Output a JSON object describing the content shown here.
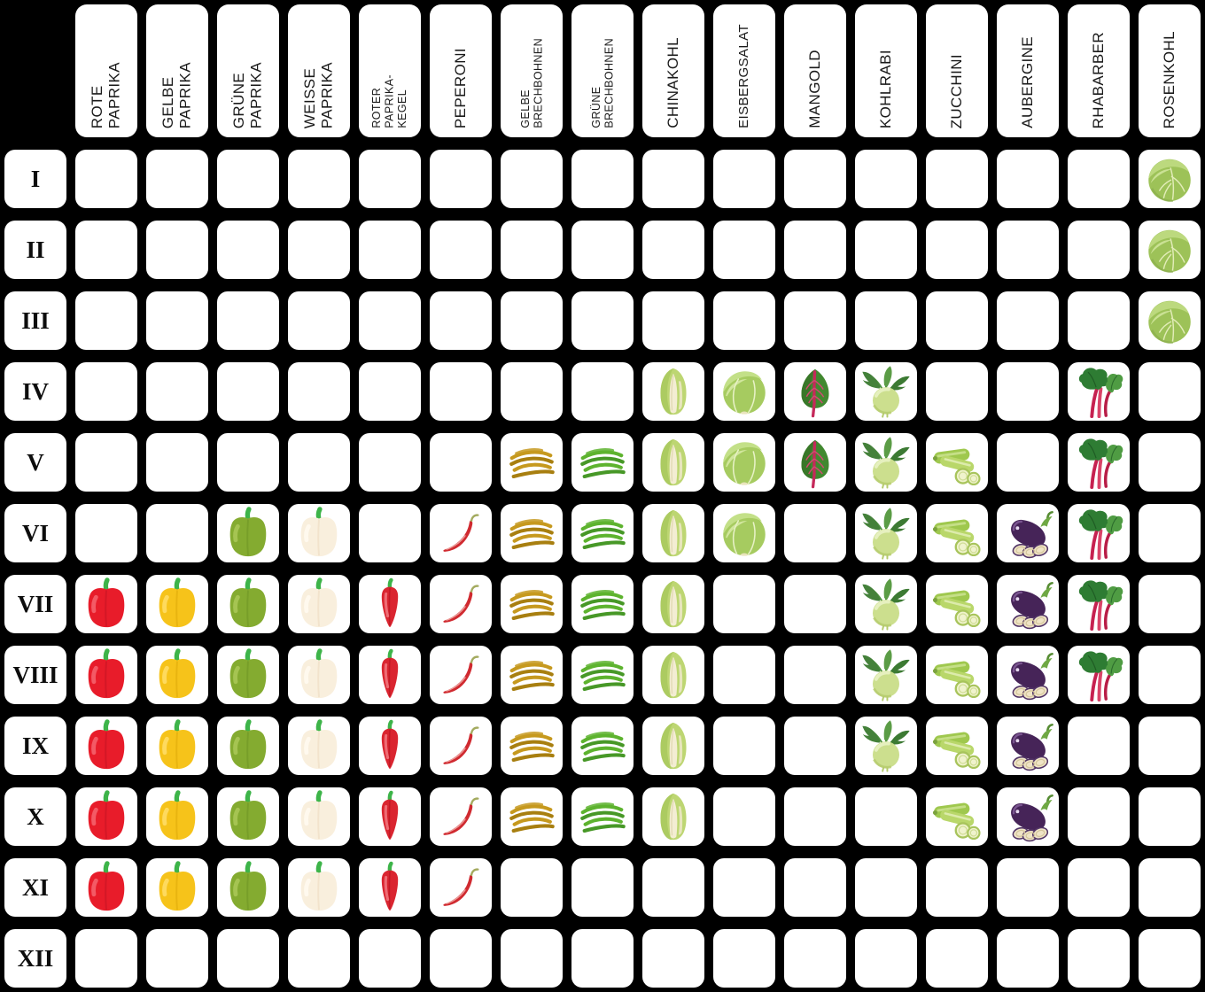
{
  "chart_data": {
    "type": "table",
    "title": "",
    "row_labels": [
      "I",
      "II",
      "III",
      "IV",
      "V",
      "VI",
      "VII",
      "VIII",
      "IX",
      "X",
      "XI",
      "XII"
    ],
    "columns": [
      {
        "id": "rote-paprika",
        "label": "ROTE\nPAPRIKA",
        "icon": "red-bell-pepper",
        "label_size": "lg",
        "months": [
          7,
          8,
          9,
          10,
          11
        ]
      },
      {
        "id": "gelbe-paprika",
        "label": "GELBE\nPAPRIKA",
        "icon": "yellow-bell-pepper",
        "label_size": "lg",
        "months": [
          7,
          8,
          9,
          10,
          11
        ]
      },
      {
        "id": "gruene-paprika",
        "label": "GRÜNE\nPAPRIKA",
        "icon": "green-bell-pepper",
        "label_size": "lg",
        "months": [
          6,
          7,
          8,
          9,
          10,
          11
        ]
      },
      {
        "id": "weisse-paprika",
        "label": "WEISSE\nPAPRIKA",
        "icon": "white-bell-pepper",
        "label_size": "lg",
        "months": [
          6,
          7,
          8,
          9,
          10,
          11
        ]
      },
      {
        "id": "roter-paprika-kegel",
        "label": "ROTER\nPAPRIKA-\nKEGEL",
        "icon": "red-pointed-pepper",
        "label_size": "sm",
        "months": [
          7,
          8,
          9,
          10,
          11
        ]
      },
      {
        "id": "peperoni",
        "label": "PEPERONI",
        "icon": "chili-pepper",
        "label_size": "lg",
        "months": [
          6,
          7,
          8,
          9,
          10,
          11
        ]
      },
      {
        "id": "gelbe-brechbohnen",
        "label": "GELBE\nBRECHBOHNEN",
        "icon": "yellow-beans",
        "label_size": "sm",
        "months": [
          5,
          6,
          7,
          8,
          9,
          10
        ]
      },
      {
        "id": "gruene-brechbohnen",
        "label": "GRÜNE\nBRECHBOHNEN",
        "icon": "green-beans",
        "label_size": "sm",
        "months": [
          5,
          6,
          7,
          8,
          9,
          10
        ]
      },
      {
        "id": "chinakohl",
        "label": "CHINAKOHL",
        "icon": "napa-cabbage",
        "label_size": "lg",
        "months": [
          4,
          5,
          6,
          7,
          8,
          9,
          10
        ]
      },
      {
        "id": "eisbergsalat",
        "label": "EISBERGSALAT",
        "icon": "iceberg-lettuce",
        "label_size": "md",
        "months": [
          4,
          5,
          6
        ]
      },
      {
        "id": "mangold",
        "label": "MANGOLD",
        "icon": "chard",
        "label_size": "lg",
        "months": [
          4,
          5
        ]
      },
      {
        "id": "kohlrabi",
        "label": "KOHLRABI",
        "icon": "kohlrabi",
        "label_size": "lg",
        "months": [
          4,
          5,
          6,
          7,
          8,
          9
        ]
      },
      {
        "id": "zucchini",
        "label": "ZUCCHINI",
        "icon": "zucchini",
        "label_size": "lg",
        "months": [
          5,
          6,
          7,
          8,
          9,
          10
        ]
      },
      {
        "id": "aubergine",
        "label": "AUBERGINE",
        "icon": "eggplant",
        "label_size": "lg",
        "months": [
          6,
          7,
          8,
          9,
          10
        ]
      },
      {
        "id": "rhabarber",
        "label": "RHABARBER",
        "icon": "rhubarb",
        "label_size": "lg",
        "months": [
          4,
          5,
          6,
          7,
          8
        ]
      },
      {
        "id": "rosenkohl",
        "label": "ROSENKOHL",
        "icon": "brussels-sprout",
        "label_size": "lg",
        "months": [
          1,
          2,
          3
        ]
      }
    ]
  },
  "colors": {
    "background": "#000000",
    "cell": "#ffffff",
    "header_text": "#1a1a1a",
    "red_pepper": "#e81c2a",
    "yellow_pepper": "#f6c31a",
    "green_pepper": "#84ab30",
    "white_pepper": "#f9efdd",
    "yellow_beans": "#c6991e",
    "green_beans": "#5db32e",
    "chard_stem": "#c5295a",
    "rhubarb_stalk": "#c62150",
    "eggplant_body": "#462458",
    "light_green": "#bcd97e"
  }
}
